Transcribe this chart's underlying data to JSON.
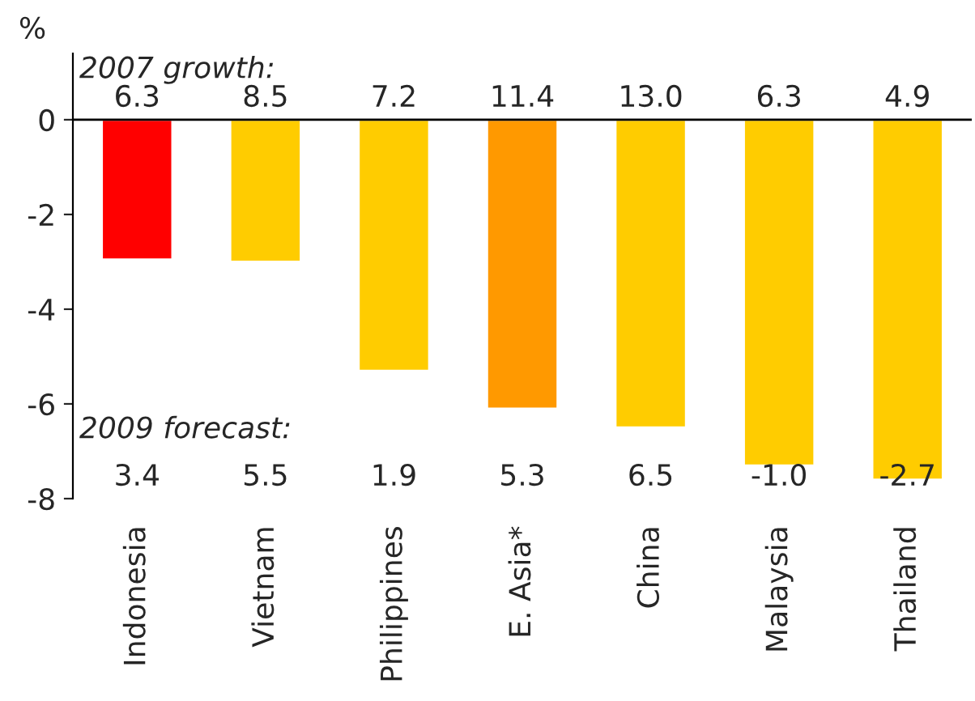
{
  "chart_data": {
    "type": "bar",
    "categories": [
      "Indonesia",
      "Vietnam",
      "Philippines",
      "E. Asia*",
      "China",
      "Malaysia",
      "Thailand"
    ],
    "values": [
      -2.95,
      -3.0,
      -5.3,
      -6.1,
      -6.5,
      -7.3,
      -7.6
    ],
    "colors": [
      "#ff0000",
      "#ffcc00",
      "#ffcc00",
      "#ff9900",
      "#ffcc00",
      "#ffcc00",
      "#ffcc00"
    ],
    "ylabel": "%",
    "ylim": [
      -8,
      1.4
    ],
    "yticks": [
      -8,
      -6,
      -4,
      -2,
      0
    ],
    "ref_lines": [
      {
        "axis": "y",
        "value": 0,
        "color": "#000000"
      }
    ],
    "annotations": [
      "2007 growth:",
      "6.3",
      "8.5",
      "7.2",
      "11.4",
      "13.0",
      "6.3",
      "4.9",
      "2009 forecast:",
      "3.4",
      "5.5",
      "1.9",
      "5.3",
      "6.5",
      "-1.0",
      "-2.7"
    ],
    "grid": false
  }
}
